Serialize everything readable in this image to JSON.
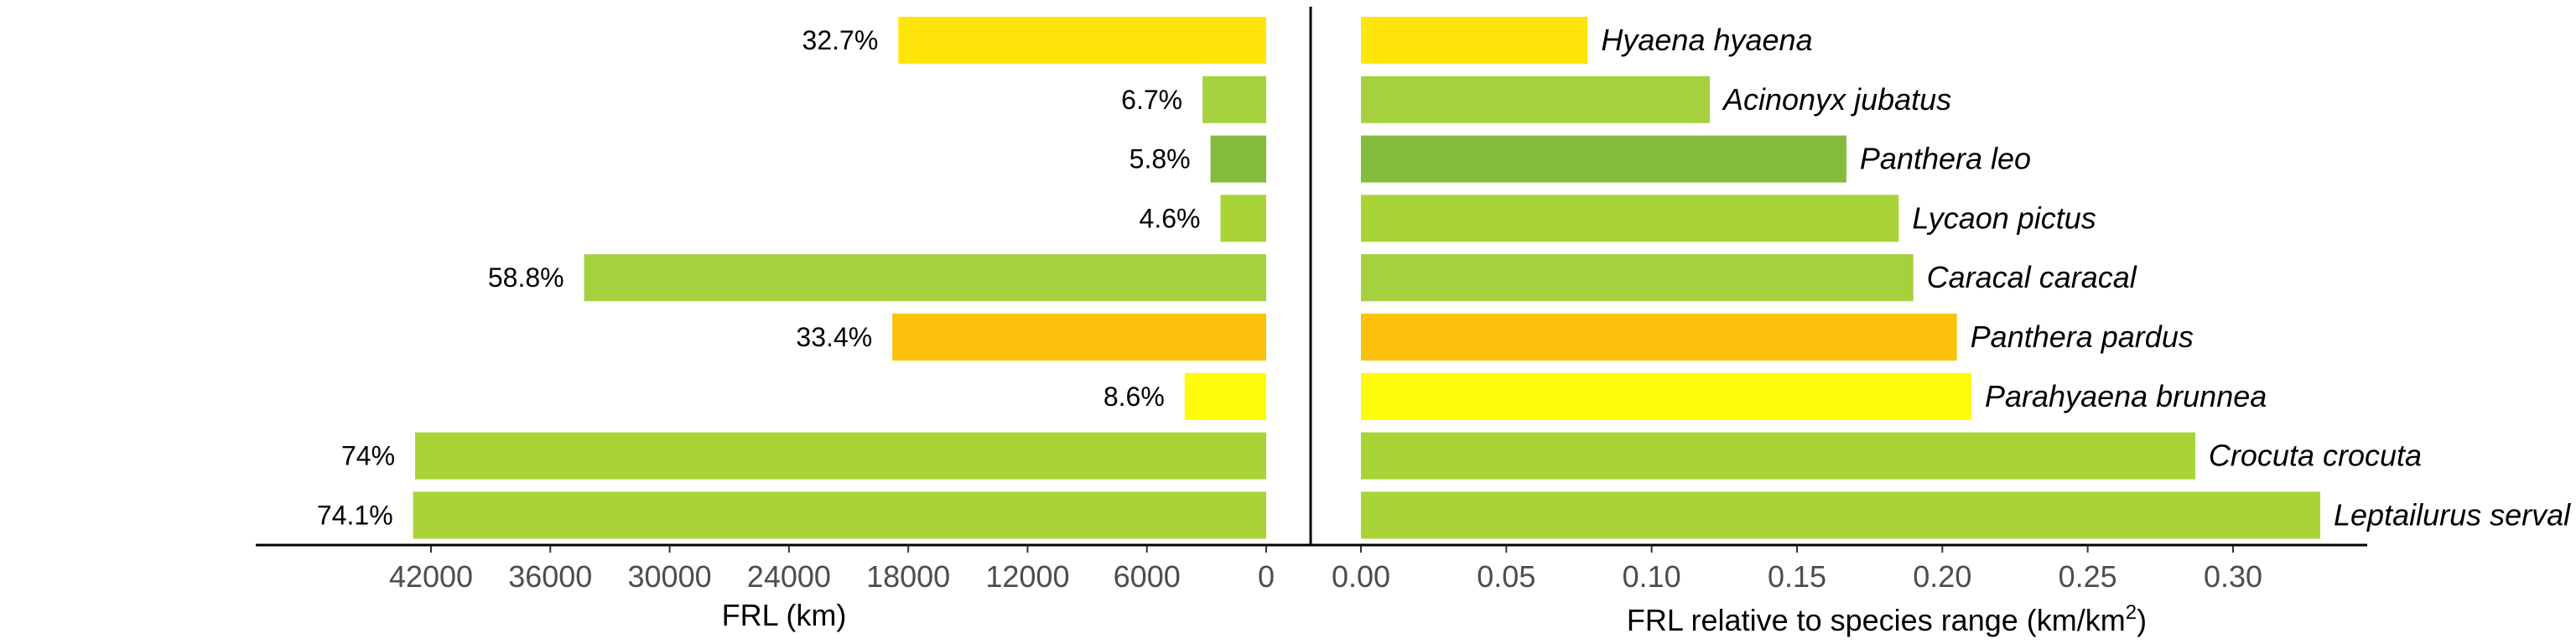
{
  "chart_data": [
    {
      "type": "bar",
      "orientation": "horizontal",
      "direction": "reversed",
      "categories": [
        "Hyaena hyaena",
        "Acinonyx jubatus",
        "Panthera leo",
        "Lycaon pictus",
        "Caracal caracal",
        "Panthera pardus",
        "Parahyaena brunnea",
        "Crocuta crocuta",
        "Leptailurus serval"
      ],
      "values": [
        18500,
        3200,
        2800,
        2300,
        34300,
        18800,
        4100,
        42800,
        42900
      ],
      "data_labels": [
        "32.7%",
        "6.7%",
        "5.8%",
        "4.6%",
        "58.8%",
        "33.4%",
        "8.6%",
        "74%",
        "74.1%"
      ],
      "xlabel": "FRL (km)",
      "xlim": [
        0,
        45000
      ],
      "ticks": [
        42000,
        36000,
        30000,
        24000,
        18000,
        12000,
        6000,
        0
      ],
      "tick_labels": [
        "42000",
        "36000",
        "30000",
        "24000",
        "18000",
        "12000",
        "6000",
        "0"
      ]
    },
    {
      "type": "bar",
      "orientation": "horizontal",
      "categories": [
        "Hyaena hyaena",
        "Acinonyx jubatus",
        "Panthera leo",
        "Lycaon pictus",
        "Caracal caracal",
        "Panthera pardus",
        "Parahyaena brunnea",
        "Crocuta crocuta",
        "Leptailurus serval"
      ],
      "values": [
        0.078,
        0.12,
        0.167,
        0.185,
        0.19,
        0.205,
        0.21,
        0.287,
        0.33
      ],
      "xlabel_main": "FRL relative to species range (km/km",
      "xlabel_sup": "2",
      "xlabel_end": ")",
      "xlim": [
        0,
        0.345
      ],
      "ticks": [
        0,
        0.05,
        0.1,
        0.15,
        0.2,
        0.25,
        0.3
      ],
      "tick_labels": [
        "0.00",
        "0.05",
        "0.10",
        "0.15",
        "0.20",
        "0.25",
        "0.30"
      ]
    }
  ],
  "colors": {
    "Hyaena hyaena": "#FFE50A",
    "Acinonyx jubatus": "#A4D13D",
    "Panthera leo": "#83BB3D",
    "Lycaon pictus": "#A8D436",
    "Caracal caracal": "#A4D13D",
    "Panthera pardus": "#FCC10A",
    "Parahyaena brunnea": "#FFFA0A",
    "Crocuta crocuta": "#A8D436",
    "Leptailurus serval": "#A8D436"
  }
}
